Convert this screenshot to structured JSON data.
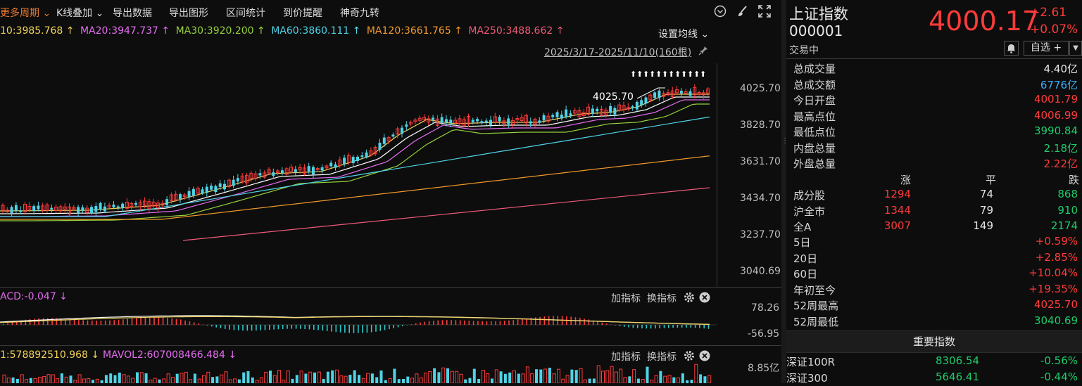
{
  "toolbar": {
    "more_period": "更多周期",
    "k_overlay": "K线叠加",
    "export_data": "导出数据",
    "export_chart": "导出图形",
    "range_stats": "区间统计",
    "price_alert": "到价提醒",
    "magic_nine": "神奇九转"
  },
  "ma": {
    "ma10": "10:3985.768 ↑",
    "ma20": "MA20:3947.737 ↑",
    "ma30": "MA30:3920.200 ↑",
    "ma60": "MA60:3860.111 ↑",
    "ma120": "MA120:3661.765 ↑",
    "ma250": "MA250:3488.662 ↑",
    "settings": "设置均线",
    "range": "2025/3/17-2025/11/10(160根)"
  },
  "price_axis": [
    "4025.70",
    "3828.70",
    "3631.70",
    "3434.70",
    "3237.70",
    "3040.69"
  ],
  "high_marker": "4025.70",
  "macd": {
    "label": "ACD:-0.047 ↓",
    "add": "加指标",
    "swap": "换指标",
    "axis_top": "78.26",
    "axis_bottom": "-56.95"
  },
  "vol": {
    "label1": "1:578892510.968 ↓",
    "label2": "MAVOL2:607008466.484 ↓",
    "add": "加指标",
    "swap": "换指标",
    "axis_top": "8.85亿"
  },
  "quote": {
    "name": "上证指数",
    "code": "000001",
    "status": "交易中",
    "price": "4000.17",
    "change": "+2.61",
    "change_pct": "+0.07%",
    "watchlist": "自选 +",
    "stats": [
      {
        "label": "总成交量",
        "value": "4.40亿",
        "color": "white"
      },
      {
        "label": "总成交额",
        "value": "6776亿",
        "color": "cyan"
      },
      {
        "label": "今日开盘",
        "value": "4001.79",
        "color": "red"
      },
      {
        "label": "最高点位",
        "value": "4006.99",
        "color": "red"
      },
      {
        "label": "最低点位",
        "value": "3990.84",
        "color": "green"
      },
      {
        "label": "内盘总量",
        "value": "2.18亿",
        "color": "green"
      },
      {
        "label": "外盘总量",
        "value": "2.22亿",
        "color": "red"
      }
    ],
    "breadth_header": {
      "up": "涨",
      "flat": "平",
      "down": "跌"
    },
    "breadth": [
      {
        "label": "成分股",
        "up": "1294",
        "flat": "74",
        "down": "868"
      },
      {
        "label": "沪全市",
        "up": "1344",
        "flat": "79",
        "down": "910"
      },
      {
        "label": "全A",
        "up": "3007",
        "flat": "149",
        "down": "2174"
      }
    ],
    "periods": [
      {
        "label": "5日",
        "value": "+0.59%",
        "color": "red"
      },
      {
        "label": "20日",
        "value": "+2.85%",
        "color": "red"
      },
      {
        "label": "60日",
        "value": "+10.04%",
        "color": "red"
      },
      {
        "label": "年初至今",
        "value": "+19.35%",
        "color": "red"
      },
      {
        "label": "52周最高",
        "value": "4025.70",
        "color": "red"
      },
      {
        "label": "52周最低",
        "value": "3040.69",
        "color": "green"
      }
    ],
    "important_title": "重要指数",
    "indices": [
      {
        "name": "深证100R",
        "value": "8306.54",
        "change": "-0.56%"
      },
      {
        "name": "深证300",
        "value": "5646.41",
        "change": "-0.44%"
      }
    ]
  },
  "colors": {
    "up": "#ff3b3b",
    "down": "#1fcc6a",
    "accent": "#e8792f",
    "bg": "#0d0d0d"
  }
}
